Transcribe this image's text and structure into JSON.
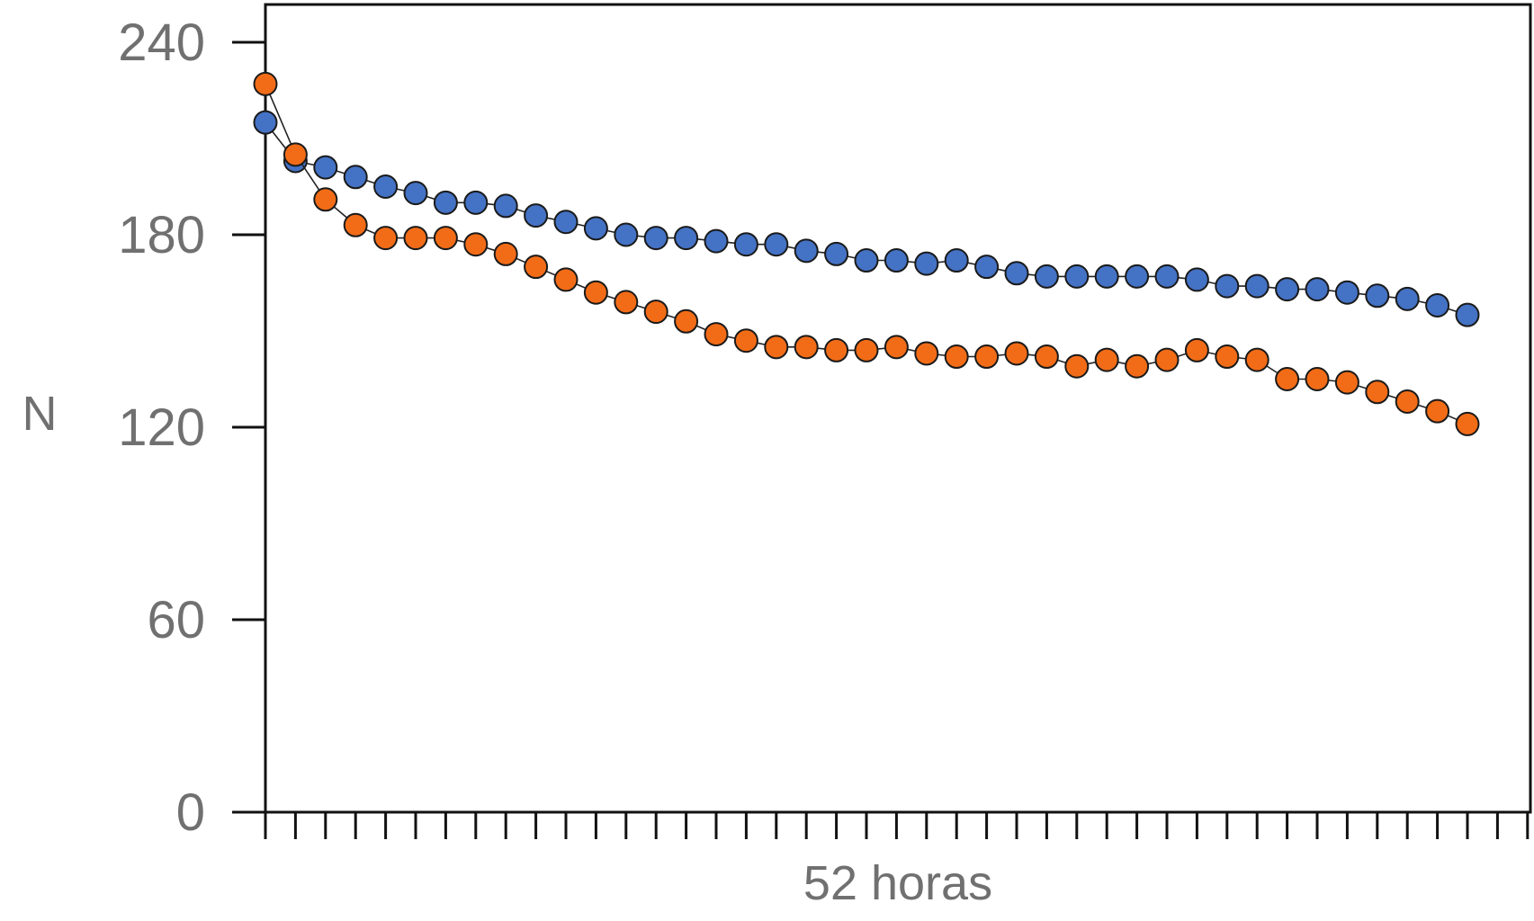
{
  "chart_data": {
    "type": "line",
    "title": "",
    "xlabel": "52 horas",
    "ylabel": "N",
    "ylim": [
      0,
      240
    ],
    "yticks": [
      0,
      60,
      120,
      180,
      240
    ],
    "x_tick_count": 43,
    "grid": false,
    "x": [
      1,
      2,
      3,
      4,
      5,
      6,
      7,
      8,
      9,
      10,
      11,
      12,
      13,
      14,
      15,
      16,
      17,
      18,
      19,
      20,
      21,
      22,
      23,
      24,
      25,
      26,
      27,
      28,
      29,
      30,
      31,
      32,
      33,
      34,
      35,
      36,
      37,
      38,
      39,
      40,
      41
    ],
    "series": [
      {
        "color": "#4472C4",
        "values": [
          215,
          203,
          201,
          198,
          195,
          193,
          190,
          190,
          189,
          186,
          184,
          182,
          180,
          179,
          179,
          178,
          177,
          177,
          175,
          174,
          172,
          172,
          171,
          172,
          170,
          168,
          167,
          167,
          167,
          167,
          167,
          166,
          164,
          164,
          163,
          163,
          162,
          161,
          160,
          158,
          155
        ]
      },
      {
        "color": "#F26C17",
        "values": [
          227,
          205,
          191,
          183,
          179,
          179,
          179,
          177,
          174,
          170,
          166,
          162,
          159,
          156,
          153,
          149,
          147,
          145,
          145,
          144,
          144,
          145,
          143,
          142,
          142,
          143,
          142,
          139,
          141,
          139,
          141,
          144,
          142,
          141,
          135,
          135,
          134,
          131,
          128,
          125,
          121
        ]
      }
    ]
  }
}
